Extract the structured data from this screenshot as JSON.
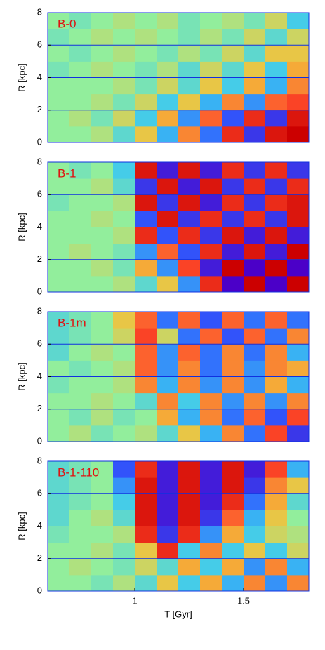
{
  "chart_data": [
    {
      "type": "heatmap",
      "title": "B-0",
      "ylabel": "R [kpc]",
      "x": [
        0.65,
        0.75,
        0.85,
        0.95,
        1.05,
        1.15,
        1.25,
        1.35,
        1.45,
        1.55,
        1.65,
        1.75
      ],
      "y": [
        0.5,
        1.5,
        2.5,
        3.5,
        4.5,
        5.5,
        6.5,
        7.5
      ],
      "z": [
        [
          0,
          0,
          0.1,
          -0.2,
          0.3,
          -0.4,
          0.5,
          -0.6,
          0.8,
          -0.8,
          0.9,
          1
        ],
        [
          0,
          0.1,
          -0.1,
          0.2,
          -0.3,
          0.4,
          -0.5,
          0.6,
          -0.7,
          0.8,
          -0.8,
          0.9
        ],
        [
          0,
          0,
          0.1,
          -0.1,
          0.2,
          -0.3,
          0.3,
          -0.4,
          0.5,
          -0.5,
          0.6,
          0.7
        ],
        [
          0,
          0,
          0,
          0.1,
          -0.1,
          0.2,
          -0.2,
          0.3,
          -0.3,
          0.4,
          -0.4,
          0.5
        ],
        [
          -0.1,
          0,
          0.1,
          0,
          -0.1,
          0.1,
          -0.2,
          0.2,
          -0.2,
          0.3,
          -0.3,
          0.4
        ],
        [
          0,
          -0.1,
          0,
          0.1,
          0,
          -0.1,
          0.1,
          -0.1,
          0.2,
          -0.2,
          0.3,
          0.3
        ],
        [
          -0.1,
          0,
          0.1,
          0,
          0.1,
          0,
          -0.1,
          0.1,
          -0.1,
          0.2,
          -0.2,
          0.2
        ],
        [
          0,
          -0.1,
          0,
          0.1,
          0,
          0.1,
          -0.1,
          0,
          0.1,
          -0.1,
          0.2,
          -0.3
        ]
      ],
      "xlim": [
        0.6,
        1.8
      ],
      "ylim": [
        0,
        8
      ],
      "yticks": [
        0,
        2,
        4,
        6,
        8
      ],
      "zlim": [
        -1,
        1
      ],
      "colormap": [
        "#4b00c8",
        "#2f5cff",
        "#3cc8f0",
        "#92ee9c",
        "#f2c23c",
        "#ff4a2a",
        "#cc0000"
      ],
      "grid": true,
      "grid_color": "#1030e0"
    },
    {
      "type": "heatmap",
      "title": "B-1",
      "ylabel": "R [kpc]",
      "x": [
        0.65,
        0.75,
        0.85,
        0.95,
        1.05,
        1.15,
        1.25,
        1.35,
        1.45,
        1.55,
        1.65,
        1.75
      ],
      "y": [
        0.5,
        1.5,
        2.5,
        3.5,
        4.5,
        5.5,
        6.5,
        7.5
      ],
      "z": [
        [
          0,
          0,
          0,
          0.1,
          -0.2,
          0.3,
          -0.5,
          0.8,
          -1,
          1,
          -1,
          1
        ],
        [
          0,
          0,
          0.1,
          -0.1,
          0.4,
          -0.5,
          0.7,
          -0.9,
          1,
          -1,
          1,
          -1
        ],
        [
          0,
          0.1,
          0,
          -0.1,
          -0.5,
          0.6,
          -0.7,
          0.8,
          -0.9,
          0.9,
          -0.9,
          1
        ],
        [
          0,
          0,
          0,
          0.1,
          0.8,
          -0.7,
          0.8,
          -0.8,
          0.9,
          -0.9,
          0.9,
          -0.9
        ],
        [
          0,
          0,
          0.1,
          0,
          -0.7,
          0.9,
          -0.8,
          0.8,
          -0.8,
          0.8,
          -0.8,
          0.9
        ],
        [
          -0.1,
          0,
          0,
          0.1,
          0.9,
          -0.8,
          0.9,
          -0.9,
          0.8,
          -0.8,
          0.8,
          0.9
        ],
        [
          0,
          0,
          0.1,
          -0.2,
          -0.8,
          0.9,
          -0.9,
          0.9,
          -0.8,
          0.8,
          -0.8,
          0.8
        ],
        [
          0,
          -0.1,
          0,
          -0.3,
          0.9,
          -0.9,
          0.9,
          -0.9,
          0.8,
          -0.8,
          0.8,
          -0.8
        ]
      ],
      "xlim": [
        0.6,
        1.8
      ],
      "ylim": [
        0,
        8
      ],
      "yticks": [
        0,
        2,
        4,
        6,
        8
      ],
      "zlim": [
        -1,
        1
      ],
      "colormap": [
        "#4b00c8",
        "#2f5cff",
        "#3cc8f0",
        "#92ee9c",
        "#f2c23c",
        "#ff4a2a",
        "#cc0000"
      ],
      "grid": true,
      "grid_color": "#1030e0"
    },
    {
      "type": "heatmap",
      "title": "B-1m",
      "ylabel": "R [kpc]",
      "x": [
        0.65,
        0.75,
        0.85,
        0.95,
        1.05,
        1.15,
        1.25,
        1.35,
        1.45,
        1.55,
        1.65,
        1.75
      ],
      "y": [
        0.5,
        1.5,
        2.5,
        3.5,
        4.5,
        5.5,
        6.5,
        7.5
      ],
      "z": [
        [
          0,
          0.1,
          -0.1,
          0,
          0.1,
          -0.2,
          0.3,
          -0.4,
          0.5,
          -0.6,
          0.7,
          -0.8
        ],
        [
          0,
          -0.1,
          0.1,
          -0.1,
          0,
          0.4,
          -0.4,
          0.5,
          -0.6,
          0.6,
          -0.7,
          0.7
        ],
        [
          0,
          0,
          0.1,
          0,
          -0.2,
          0.5,
          -0.3,
          0.5,
          -0.5,
          0.5,
          -0.5,
          0.5
        ],
        [
          -0.1,
          0,
          0,
          0.1,
          0.5,
          -0.4,
          0.5,
          -0.5,
          0.5,
          -0.5,
          0.4,
          -0.4
        ],
        [
          0,
          -0.1,
          0,
          0.1,
          0.6,
          -0.5,
          0.5,
          -0.6,
          0.5,
          -0.5,
          0.5,
          0.4
        ],
        [
          -0.2,
          0,
          0.1,
          0,
          0.6,
          -0.5,
          0.6,
          -0.6,
          0.5,
          -0.6,
          0.5,
          -0.4
        ],
        [
          -0.2,
          -0.1,
          0,
          0.2,
          0.7,
          0.2,
          -0.6,
          0.6,
          -0.7,
          0.6,
          -0.6,
          0.5
        ],
        [
          -0.2,
          -0.1,
          0,
          0.3,
          0.6,
          -0.6,
          0.6,
          -0.7,
          0.6,
          -0.6,
          0.6,
          -0.6
        ]
      ],
      "xlim": [
        0.6,
        1.8
      ],
      "ylim": [
        0,
        8
      ],
      "yticks": [
        0,
        2,
        4,
        6,
        8
      ],
      "zlim": [
        -1,
        1
      ],
      "colormap": [
        "#4b00c8",
        "#2f5cff",
        "#3cc8f0",
        "#92ee9c",
        "#f2c23c",
        "#ff4a2a",
        "#cc0000"
      ],
      "grid": true,
      "grid_color": "#1030e0"
    },
    {
      "type": "heatmap",
      "title": "B-1-110",
      "ylabel": "R [kpc]",
      "xlabel": "T [Gyr]",
      "x": [
        0.65,
        0.75,
        0.85,
        0.95,
        1.05,
        1.15,
        1.25,
        1.35,
        1.45,
        1.55,
        1.65,
        1.75
      ],
      "y": [
        0.5,
        1.5,
        2.5,
        3.5,
        4.5,
        5.5,
        6.5,
        7.5
      ],
      "z": [
        [
          0,
          0,
          -0.1,
          0.1,
          -0.2,
          0.3,
          -0.3,
          0.4,
          -0.4,
          0.5,
          -0.5,
          0.5
        ],
        [
          0,
          0.1,
          0,
          -0.1,
          0.2,
          -0.2,
          0.4,
          -0.3,
          0.4,
          -0.5,
          0.5,
          -0.4
        ],
        [
          0,
          0,
          0.1,
          -0.1,
          0.3,
          0.8,
          -0.3,
          0.5,
          -0.3,
          0.3,
          -0.3,
          0.2
        ],
        [
          -0.1,
          0,
          0,
          0.1,
          0.8,
          -0.8,
          0.8,
          -0.5,
          0.4,
          -0.3,
          0.2,
          0.1
        ],
        [
          -0.2,
          0,
          0.1,
          -0.2,
          0.9,
          -0.9,
          0.9,
          -0.8,
          0.6,
          -0.4,
          0.3,
          0
        ],
        [
          -0.2,
          -0.1,
          0,
          -0.3,
          0.9,
          -0.9,
          0.9,
          -0.9,
          0.8,
          -0.6,
          0.4,
          -0.2
        ],
        [
          -0.2,
          -0.1,
          0,
          -0.5,
          0.9,
          -0.9,
          0.9,
          -0.9,
          0.9,
          -0.8,
          0.5,
          0.3
        ],
        [
          -0.2,
          -0.1,
          0,
          -0.7,
          0.8,
          -0.9,
          0.9,
          -0.9,
          0.9,
          -0.9,
          0.7,
          -0.4
        ]
      ],
      "xlim": [
        0.6,
        1.8
      ],
      "ylim": [
        0,
        8
      ],
      "yticks": [
        0,
        2,
        4,
        6,
        8
      ],
      "xticks": [
        1,
        1.5
      ],
      "zlim": [
        -1,
        1
      ],
      "colormap": [
        "#4b00c8",
        "#2f5cff",
        "#3cc8f0",
        "#92ee9c",
        "#f2c23c",
        "#ff4a2a",
        "#cc0000"
      ],
      "grid": true,
      "grid_color": "#1030e0"
    }
  ]
}
